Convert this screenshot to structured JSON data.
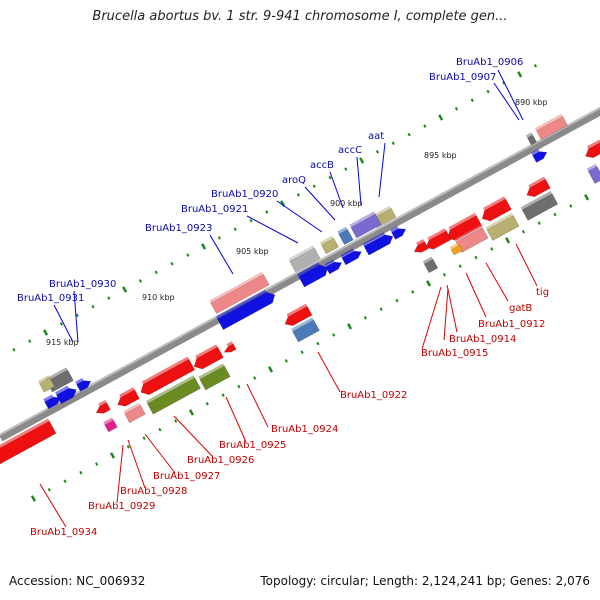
{
  "title": "Brucella abortus bv. 1 str. 9-941 chromosome I, complete gen...",
  "footer": {
    "accession": "Accession: NC_006932",
    "topology": "Topology: circular; Length: 2,124,241 bp; Genes: 2,076"
  },
  "colors": {
    "forward_label": "#0a0aa8",
    "reverse_label": "#c00000",
    "callout_line_forward": "#0000dd",
    "callout_line_reverse": "#dd0000",
    "backbone": "#8a8a8a",
    "tick": "#1a8a1a"
  },
  "ticks": [
    "890 kbp",
    "895 kbp",
    "900 kbp",
    "905 kbp",
    "910 kbp",
    "915 kbp"
  ],
  "forward_labels": [
    "BruAb1_0906",
    "BruAb1_0907",
    "aat",
    "accC",
    "accB",
    "aroQ",
    "BruAb1_0920",
    "BruAb1_0921",
    "BruAb1_0923",
    "BruAb1_0930",
    "BruAb1_0931"
  ],
  "reverse_labels": [
    "tig",
    "gatB",
    "BruAb1_0912",
    "BruAb1_0914",
    "BruAb1_0915",
    "BruAb1_0922",
    "BruAb1_0924",
    "BruAb1_0925",
    "BruAb1_0926",
    "BruAb1_0927",
    "BruAb1_0928",
    "BruAb1_0929",
    "BruAb1_0934"
  ]
}
